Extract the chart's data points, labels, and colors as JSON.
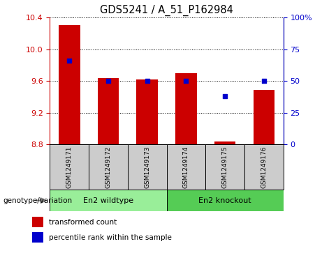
{
  "title": "GDS5241 / A_51_P162984",
  "samples": [
    "GSM1249171",
    "GSM1249172",
    "GSM1249173",
    "GSM1249174",
    "GSM1249175",
    "GSM1249176"
  ],
  "bar_values": [
    10.31,
    9.635,
    9.615,
    9.7,
    8.835,
    9.49
  ],
  "bar_base": 8.8,
  "percentile_values": [
    66,
    50,
    50,
    50,
    38,
    50
  ],
  "ylim_left": [
    8.8,
    10.4
  ],
  "ylim_right": [
    0,
    100
  ],
  "yticks_left": [
    8.8,
    9.2,
    9.6,
    10.0,
    10.4
  ],
  "yticks_right": [
    0,
    25,
    50,
    75,
    100
  ],
  "ytick_labels_right": [
    "0",
    "25",
    "50",
    "75",
    "100%"
  ],
  "bar_color": "#cc0000",
  "percentile_color": "#0000cc",
  "bg_xtick": "#cccccc",
  "group1_label": "En2 wildtype",
  "group2_label": "En2 knockout",
  "group1_color": "#99ee99",
  "group2_color": "#55cc55",
  "group1_indices": [
    0,
    1,
    2
  ],
  "group2_indices": [
    3,
    4,
    5
  ],
  "legend_red_label": "transformed count",
  "legend_blue_label": "percentile rank within the sample",
  "genotype_label": "genotype/variation",
  "left_axis_color": "#cc0000",
  "right_axis_color": "#0000cc",
  "bar_width": 0.55,
  "figwidth": 4.61,
  "figheight": 3.63,
  "dpi": 100
}
